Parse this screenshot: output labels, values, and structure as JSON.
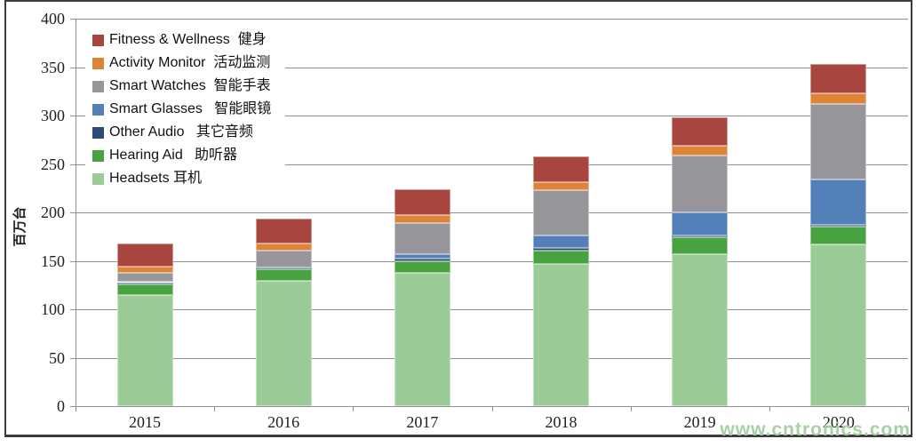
{
  "chart_data": {
    "type": "bar",
    "stacked": true,
    "title": "",
    "xlabel": "",
    "ylabel": "百万台",
    "ylim": [
      0,
      400
    ],
    "yticks": [
      0,
      50,
      100,
      150,
      200,
      250,
      300,
      350,
      400
    ],
    "grid": "horizontal",
    "legend_position": "top-left-inside",
    "categories": [
      "2015",
      "2016",
      "2017",
      "2018",
      "2019",
      "2020"
    ],
    "series": [
      {
        "name": "Headsets 耳机",
        "color": "#9bcb97",
        "values": [
          115,
          129,
          138,
          147,
          157,
          167
        ]
      },
      {
        "name": "Hearing Aid 助听器",
        "color": "#47a23f",
        "values": [
          11,
          12,
          12,
          14,
          17,
          18
        ]
      },
      {
        "name": "Other Audio 其它音频",
        "color": "#2e4b76",
        "values": [
          1,
          1,
          2,
          2,
          2,
          2
        ]
      },
      {
        "name": "Smart Glasses 智能眼镜",
        "color": "#5380b8",
        "values": [
          1,
          1,
          5,
          13,
          24,
          47
        ]
      },
      {
        "name": "Smart Watches 智能手表",
        "color": "#97969a",
        "values": [
          10,
          18,
          32,
          47,
          59,
          78
        ]
      },
      {
        "name": "Activity Monitor 活动监测",
        "color": "#dd8439",
        "values": [
          6,
          7,
          8,
          8,
          10,
          11
        ]
      },
      {
        "name": "Fitness & Wellness 健身",
        "color": "#a8453f",
        "values": [
          24,
          26,
          27,
          27,
          29,
          30
        ]
      }
    ],
    "totals": [
      168,
      194,
      224,
      258,
      298,
      353
    ]
  },
  "legend": {
    "items": [
      {
        "label": "Fitness & Wellness  健身",
        "color": "#a8453f"
      },
      {
        "label": "Activity Monitor  活动监测",
        "color": "#dd8439"
      },
      {
        "label": "Smart Watches  智能手表",
        "color": "#97969a"
      },
      {
        "label": "Smart Glasses   智能眼镜",
        "color": "#5380b8"
      },
      {
        "label": "Other Audio   其它音频",
        "color": "#2e4b76"
      },
      {
        "label": "Hearing Aid   助听器",
        "color": "#47a23f"
      },
      {
        "label": "Headsets 耳机",
        "color": "#9bcb97"
      }
    ]
  },
  "watermark": {
    "text": "www.cntronics.com",
    "color": "#a8d0a5"
  }
}
